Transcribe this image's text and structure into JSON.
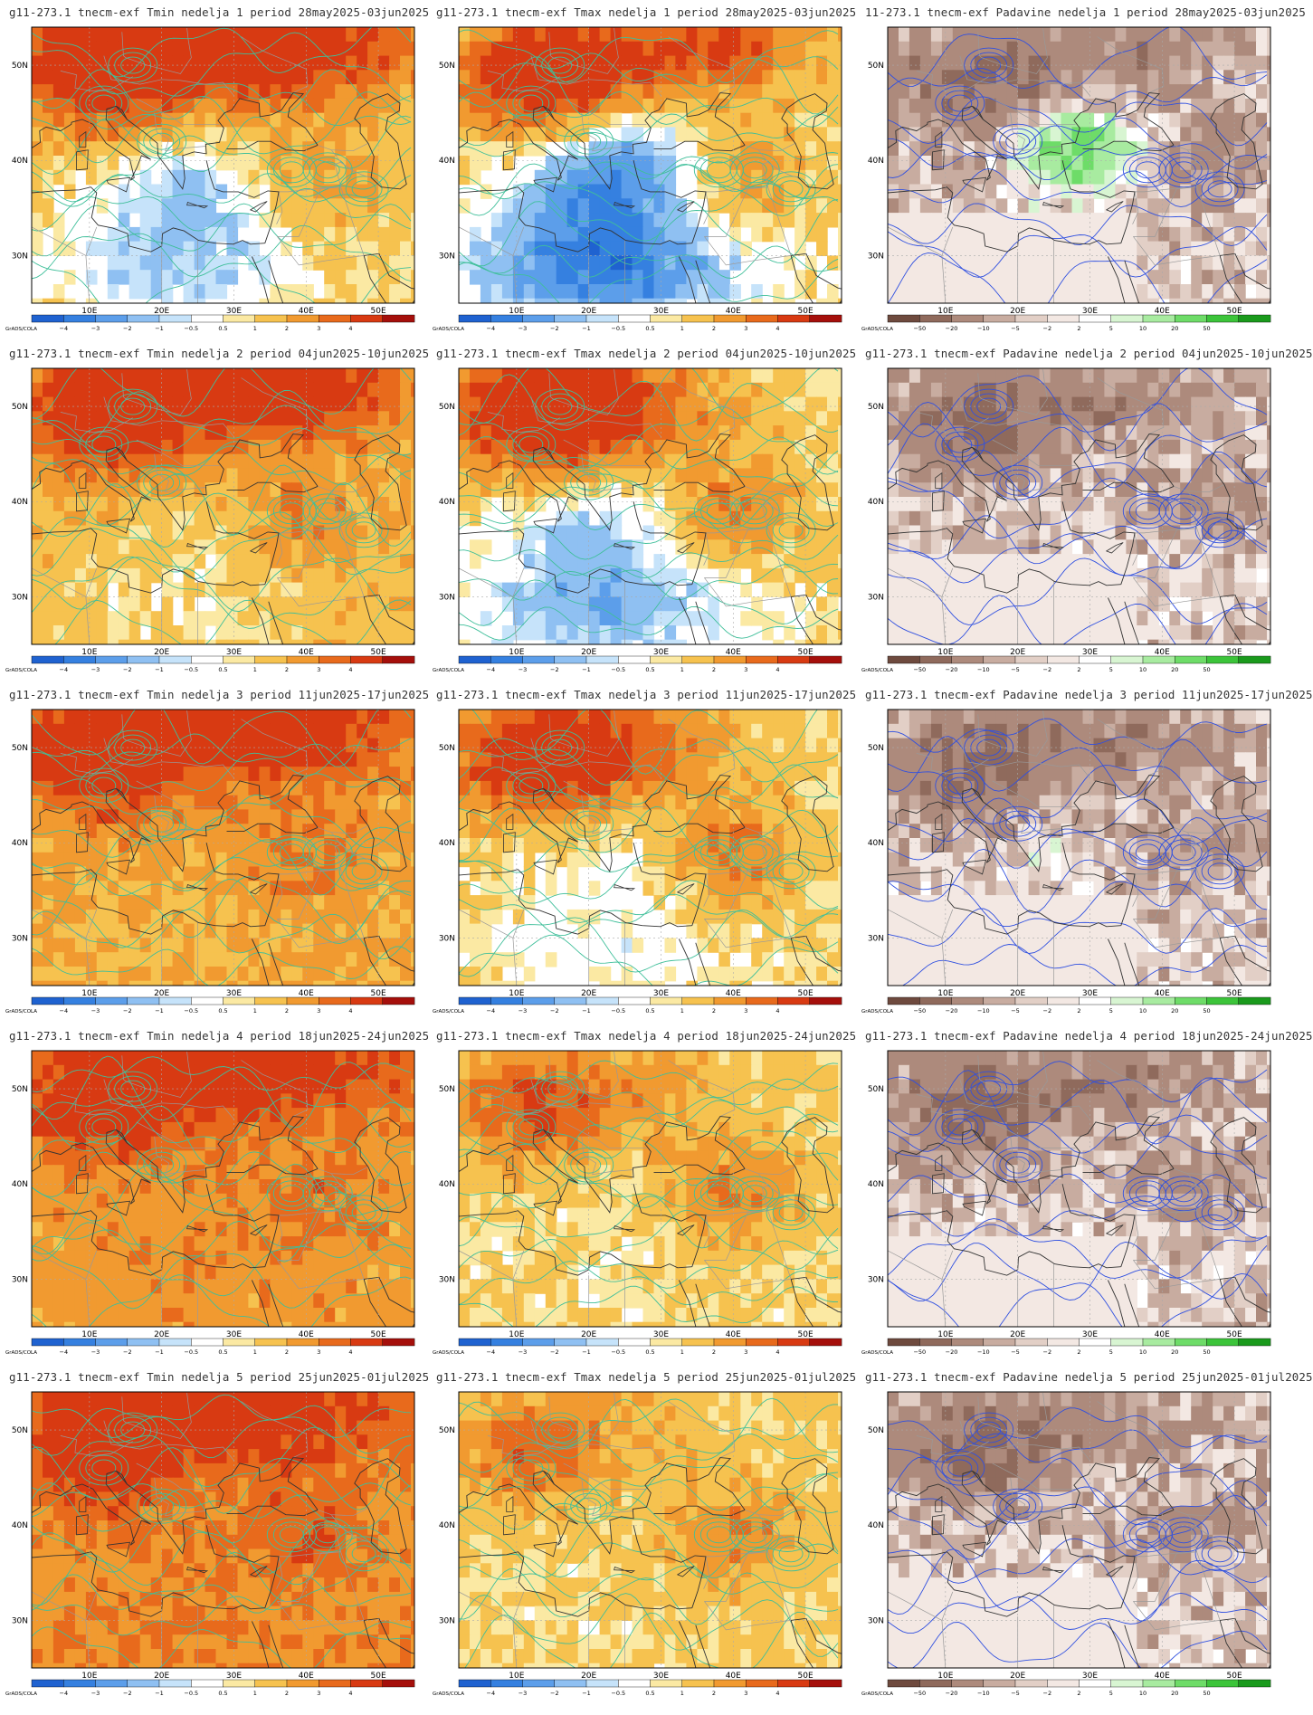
{
  "source_label": "GrADS/COLA",
  "map": {
    "lon_labels": [
      "10E",
      "20E",
      "30E",
      "40E",
      "50E"
    ],
    "lat_labels": [
      "50N",
      "40N",
      "30N"
    ]
  },
  "legends": {
    "temperature": {
      "ticks": [
        "−4",
        "−3",
        "−2",
        "−1",
        "−0.5",
        "0.5",
        "1",
        "2",
        "3",
        "4"
      ],
      "colors": [
        "#1f62d0",
        "#3580e0",
        "#5c9eea",
        "#8fc0f2",
        "#c6e3fa",
        "#ffffff",
        "#fbe9a3",
        "#f6c24f",
        "#f19a30",
        "#e86a1c",
        "#d83a12",
        "#a50f0b"
      ]
    },
    "precipitation": {
      "ticks": [
        "−50",
        "−20",
        "−10",
        "−5",
        "−2",
        "2",
        "5",
        "10",
        "20",
        "50"
      ],
      "colors": [
        "#6e4a3e",
        "#8f6a5c",
        "#ad8a7c",
        "#c8aca0",
        "#e2cfc6",
        "#f3e8e3",
        "#ffffff",
        "#d8f5d2",
        "#a8eba0",
        "#6edc68",
        "#3cc43a",
        "#1a9a1c"
      ]
    }
  },
  "panels": [
    {
      "title": "g11-273.1 tnecm-exf Tmin nedelja 1 period 28may2025-03jun2025",
      "variable": "Tmin",
      "week": 1,
      "legend": "temperature"
    },
    {
      "title": "g11-273.1 tnecm-exf Tmax nedelja 1 period 28may2025-03jun2025",
      "variable": "Tmax",
      "week": 1,
      "legend": "temperature"
    },
    {
      "title": "11-273.1 tnecm-exf Padavine nedelja 1 period 28may2025-03jun2025",
      "variable": "Padavine",
      "week": 1,
      "legend": "precipitation"
    },
    {
      "title": "g11-273.1 tnecm-exf Tmin nedelja 2 period 04jun2025-10jun2025",
      "variable": "Tmin",
      "week": 2,
      "legend": "temperature"
    },
    {
      "title": "g11-273.1 tnecm-exf Tmax nedelja 2 period 04jun2025-10jun2025",
      "variable": "Tmax",
      "week": 2,
      "legend": "temperature"
    },
    {
      "title": "g11-273.1 tnecm-exf Padavine nedelja 2 period 04jun2025-10jun2025",
      "variable": "Padavine",
      "week": 2,
      "legend": "precipitation"
    },
    {
      "title": "g11-273.1 tnecm-exf Tmin nedelja 3 period 11jun2025-17jun2025",
      "variable": "Tmin",
      "week": 3,
      "legend": "temperature"
    },
    {
      "title": "g11-273.1 tnecm-exf Tmax nedelja 3 period 11jun2025-17jun2025",
      "variable": "Tmax",
      "week": 3,
      "legend": "temperature"
    },
    {
      "title": "g11-273.1 tnecm-exf Padavine nedelja 3 period 11jun2025-17jun2025",
      "variable": "Padavine",
      "week": 3,
      "legend": "precipitation"
    },
    {
      "title": "g11-273.1 tnecm-exf Tmin nedelja 4 period 18jun2025-24jun2025",
      "variable": "Tmin",
      "week": 4,
      "legend": "temperature"
    },
    {
      "title": "g11-273.1 tnecm-exf Tmax nedelja 4 period 18jun2025-24jun2025",
      "variable": "Tmax",
      "week": 4,
      "legend": "temperature"
    },
    {
      "title": "g11-273.1 tnecm-exf Padavine nedelja 4 period 18jun2025-24jun2025",
      "variable": "Padavine",
      "week": 4,
      "legend": "precipitation"
    },
    {
      "title": "g11-273.1 tnecm-exf Tmin nedelja 5 period 25jun2025-01jul2025",
      "variable": "Tmin",
      "week": 5,
      "legend": "temperature"
    },
    {
      "title": "g11-273.1 tnecm-exf Tmax nedelja 5 period 25jun2025-01jul2025",
      "variable": "Tmax",
      "week": 5,
      "legend": "temperature"
    },
    {
      "title": "g11-273.1 tnecm-exf Padavine nedelja 5 period 25jun2025-01jul2025",
      "variable": "Padavine",
      "week": 5,
      "legend": "precipitation"
    }
  ]
}
